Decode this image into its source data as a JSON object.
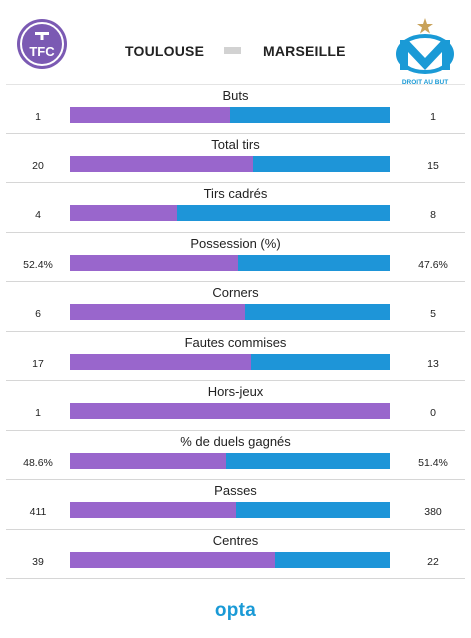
{
  "header": {
    "home_team": "TOULOUSE",
    "away_team": "MARSEILLE",
    "home_logo_text": "TFC",
    "away_logo_motto": "DROIT AU BUT"
  },
  "colors": {
    "home": "#9966cc",
    "away": "#1e95d8"
  },
  "footer": {
    "brand": "opta"
  },
  "chart_data": {
    "type": "bar",
    "orientation": "horizontal-stacked",
    "categories": [
      "Buts",
      "Total tirs",
      "Tirs cadrés",
      "Possession (%)",
      "Corners",
      "Fautes commises",
      "Hors-jeux",
      "% de duels gagnés",
      "Passes",
      "Centres"
    ],
    "series": [
      {
        "name": "TOULOUSE",
        "values": [
          1,
          20,
          4,
          52.4,
          6,
          17,
          1,
          48.6,
          411,
          39
        ]
      },
      {
        "name": "MARSEILLE",
        "values": [
          1,
          15,
          8,
          47.6,
          5,
          13,
          0,
          51.4,
          380,
          22
        ]
      }
    ],
    "labels": {
      "home": [
        "1",
        "20",
        "4",
        "52.4%",
        "6",
        "17",
        "1",
        "48.6%",
        "411",
        "39"
      ],
      "away": [
        "1",
        "15",
        "8",
        "47.6%",
        "5",
        "13",
        "0",
        "51.4%",
        "380",
        "22"
      ]
    }
  }
}
